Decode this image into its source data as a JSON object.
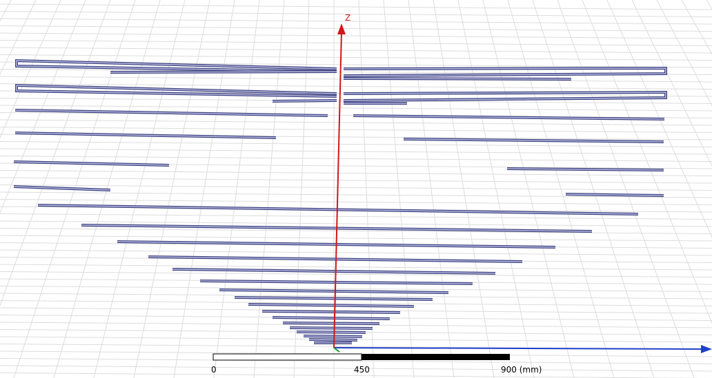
{
  "axes": {
    "z_label": "Z"
  },
  "scale_bar": {
    "labels": [
      "0",
      "450",
      "900 (mm)"
    ]
  }
}
